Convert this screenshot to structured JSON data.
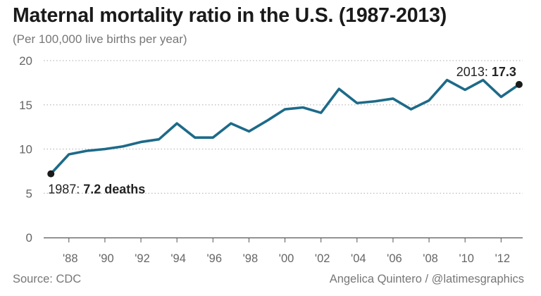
{
  "header": {
    "title": "Maternal mortality ratio in the U.S. (1987-2013)",
    "subtitle": "(Per 100,000 live births per year)"
  },
  "footer": {
    "source": "Source: CDC",
    "credit": "Angelica Quintero / @latimesgraphics"
  },
  "colors": {
    "line": "#1d6a89",
    "grid": "#bbbbbb",
    "axis": "#555555",
    "text": "#666666",
    "marker": "#1a1a1a"
  },
  "chart_data": {
    "type": "line",
    "title": "Maternal mortality ratio in the U.S. (1987-2013)",
    "subtitle": "(Per 100,000 live births per year)",
    "xlabel": "",
    "ylabel": "",
    "x": [
      1987,
      1988,
      1989,
      1990,
      1991,
      1992,
      1993,
      1994,
      1995,
      1996,
      1997,
      1998,
      1999,
      2000,
      2001,
      2002,
      2003,
      2004,
      2005,
      2006,
      2007,
      2008,
      2009,
      2010,
      2011,
      2012,
      2013
    ],
    "series": [
      {
        "name": "Maternal mortality ratio",
        "values": [
          7.2,
          9.4,
          9.8,
          10.0,
          10.3,
          10.8,
          11.1,
          12.9,
          11.3,
          11.3,
          12.9,
          12.0,
          13.2,
          14.5,
          14.7,
          14.1,
          16.8,
          15.2,
          15.4,
          15.7,
          14.5,
          15.5,
          17.8,
          16.7,
          17.8,
          15.9,
          17.3
        ]
      }
    ],
    "xlim": [
      1986.6,
      2013.2
    ],
    "ylim": [
      0,
      20
    ],
    "yticks": [
      0,
      5,
      10,
      15,
      20
    ],
    "xticks": [
      {
        "value": 1988,
        "label": "'88"
      },
      {
        "value": 1990,
        "label": "'90"
      },
      {
        "value": 1992,
        "label": "'92"
      },
      {
        "value": 1994,
        "label": "'94"
      },
      {
        "value": 1996,
        "label": "'96"
      },
      {
        "value": 1998,
        "label": "'98"
      },
      {
        "value": 2000,
        "label": "'00"
      },
      {
        "value": 2002,
        "label": "'02"
      },
      {
        "value": 2004,
        "label": "'04"
      },
      {
        "value": 2006,
        "label": "'06"
      },
      {
        "value": 2008,
        "label": "'08"
      },
      {
        "value": 2010,
        "label": "'10"
      },
      {
        "value": 2012,
        "label": "'12"
      }
    ],
    "grid": true,
    "annotations": [
      {
        "x": 1987,
        "y": 7.2,
        "prefix": "1987: ",
        "value": "7.2 deaths",
        "position": "below-right"
      },
      {
        "x": 2013,
        "y": 17.3,
        "prefix": "2013: ",
        "value": "17.3",
        "position": "above-left"
      }
    ]
  }
}
